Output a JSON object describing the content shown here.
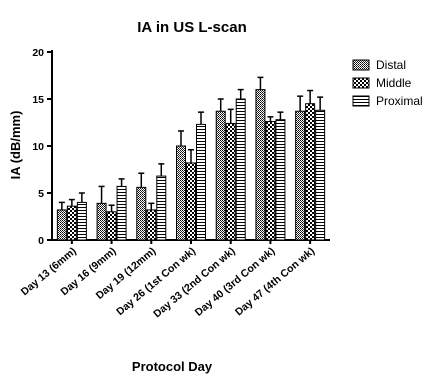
{
  "chart_data": {
    "type": "bar",
    "title": "IA in US L-scan",
    "xlabel": "Protocol Day",
    "ylabel": "IA (dB/mm)",
    "ylim": [
      0,
      20
    ],
    "yticks": [
      0,
      5,
      10,
      15,
      20
    ],
    "error_bars": true,
    "legend_position": "right",
    "categories": [
      "Day 13 (6mm)",
      "Day 16 (9mm)",
      "Day 19 (12mm)",
      "Day 26 (1st Con wk)",
      "Day 33 (2nd Con wk)",
      "Day 40 (3rd Con wk)",
      "Day 47 (4th Con wk)"
    ],
    "series": [
      {
        "name": "Distal",
        "pattern": "dense-dots",
        "values": [
          3.2,
          3.9,
          5.6,
          10.0,
          13.7,
          16.0,
          13.7
        ],
        "errors": [
          0.8,
          1.8,
          1.5,
          1.6,
          1.3,
          1.3,
          1.6
        ]
      },
      {
        "name": "Middle",
        "pattern": "checkerboard",
        "values": [
          3.6,
          3.0,
          3.2,
          8.2,
          12.4,
          12.6,
          14.5
        ],
        "errors": [
          0.7,
          0.7,
          0.7,
          1.4,
          1.5,
          0.5,
          1.4
        ]
      },
      {
        "name": "Proximal",
        "pattern": "horizontal-stripes",
        "values": [
          4.0,
          5.7,
          6.8,
          12.3,
          15.0,
          12.8,
          13.8
        ],
        "errors": [
          1.0,
          0.8,
          1.3,
          1.3,
          1.0,
          0.8,
          1.4
        ]
      }
    ],
    "colors": {
      "bar_stroke": "#000000",
      "background": "#ffffff"
    }
  }
}
